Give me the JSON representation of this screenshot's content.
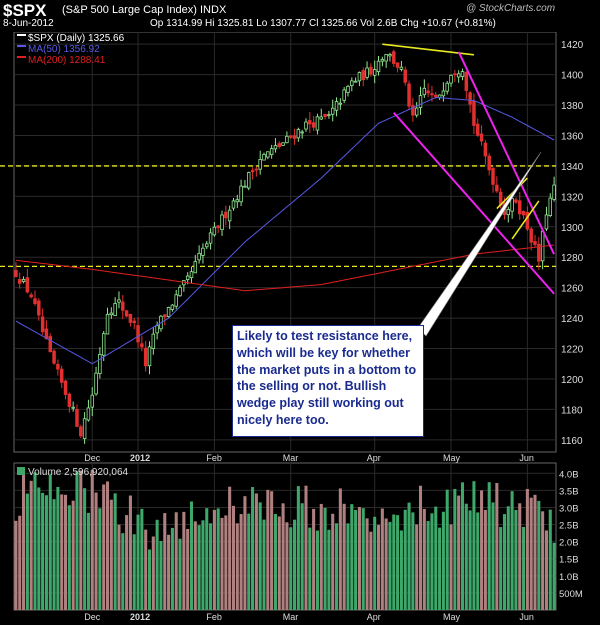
{
  "header": {
    "symbol": "$SPX",
    "description": "(S&P 500 Large Cap Index) INDX",
    "copyright": "@ StockCharts.com",
    "date": "8-Jun-2012",
    "ohlc_text": "Op 1314.99  Hi 1325.81  Lo 1307.77  Cl 1325.66  Vol 2.6B  Chg +10.67 (+0.81%)"
  },
  "note": {
    "text": "Likely to test resistance here, which will be key for whether the market puts in a bottom to the selling or not. Bullish wedge play still working out nicely here too."
  },
  "colors": {
    "background": "#000000",
    "grid": "#2a2a2a",
    "up": "#90e890",
    "down": "#e23030",
    "ma50": "#5858e8",
    "ma200": "#e02020",
    "trendline": "#ee22ee",
    "horizontal": "#e8e820",
    "volume_up": "#3ea86a",
    "volume_down": "#b08080"
  },
  "chart_data": [
    {
      "type": "candlestick",
      "title": "$SPX (Daily) 1325.66",
      "legend": [
        {
          "name": "$SPX (Daily)",
          "value": "1325.66",
          "color": "#ffffff"
        },
        {
          "name": "MA(50)",
          "value": "1356.92",
          "color": "#5858e8"
        },
        {
          "name": "MA(200)",
          "value": "1288.41",
          "color": "#e02020"
        }
      ],
      "legend_position": "top-left",
      "x_ticks": [
        "Dec",
        "2012",
        "Feb",
        "Mar",
        "Apr",
        "May",
        "Jun"
      ],
      "y_ticks": [
        1160,
        1180,
        1200,
        1220,
        1240,
        1260,
        1280,
        1300,
        1320,
        1340,
        1360,
        1380,
        1400,
        1420
      ],
      "ylim": [
        1152,
        1428
      ],
      "grid": true,
      "close_anchors": [
        {
          "index": 0,
          "close": 1270
        },
        {
          "index": 4,
          "close": 1255
        },
        {
          "index": 9,
          "close": 1215
        },
        {
          "index": 14,
          "close": 1185
        },
        {
          "index": 17,
          "close": 1165
        },
        {
          "index": 20,
          "close": 1190
        },
        {
          "index": 24,
          "close": 1245
        },
        {
          "index": 27,
          "close": 1250
        },
        {
          "index": 31,
          "close": 1235
        },
        {
          "index": 34,
          "close": 1210
        },
        {
          "index": 37,
          "close": 1235
        },
        {
          "index": 41,
          "close": 1250
        },
        {
          "index": 45,
          "close": 1265
        },
        {
          "index": 49,
          "close": 1285
        },
        {
          "index": 54,
          "close": 1305
        },
        {
          "index": 59,
          "close": 1325
        },
        {
          "index": 64,
          "close": 1345
        },
        {
          "index": 70,
          "close": 1355
        },
        {
          "index": 76,
          "close": 1367
        },
        {
          "index": 82,
          "close": 1372
        },
        {
          "index": 88,
          "close": 1395
        },
        {
          "index": 93,
          "close": 1403
        },
        {
          "index": 97,
          "close": 1415
        },
        {
          "index": 101,
          "close": 1403
        },
        {
          "index": 104,
          "close": 1370
        },
        {
          "index": 107,
          "close": 1390
        },
        {
          "index": 110,
          "close": 1383
        },
        {
          "index": 114,
          "close": 1402
        },
        {
          "index": 117,
          "close": 1405
        },
        {
          "index": 120,
          "close": 1368
        },
        {
          "index": 124,
          "close": 1338
        },
        {
          "index": 128,
          "close": 1310
        },
        {
          "index": 131,
          "close": 1318
        },
        {
          "index": 134,
          "close": 1300
        },
        {
          "index": 137,
          "close": 1278
        },
        {
          "index": 139,
          "close": 1310
        },
        {
          "index": 141,
          "close": 1325
        }
      ],
      "ma50": [
        {
          "index": 0,
          "value": 1238
        },
        {
          "index": 20,
          "value": 1210
        },
        {
          "index": 40,
          "value": 1240
        },
        {
          "index": 60,
          "value": 1290
        },
        {
          "index": 80,
          "value": 1332
        },
        {
          "index": 95,
          "value": 1368
        },
        {
          "index": 110,
          "value": 1385
        },
        {
          "index": 120,
          "value": 1383
        },
        {
          "index": 130,
          "value": 1372
        },
        {
          "index": 141,
          "value": 1357
        }
      ],
      "ma200": [
        {
          "index": 0,
          "value": 1278
        },
        {
          "index": 20,
          "value": 1272
        },
        {
          "index": 40,
          "value": 1265
        },
        {
          "index": 60,
          "value": 1258
        },
        {
          "index": 80,
          "value": 1262
        },
        {
          "index": 100,
          "value": 1272
        },
        {
          "index": 120,
          "value": 1282
        },
        {
          "index": 141,
          "value": 1288
        }
      ],
      "annotations": {
        "horizontal_lines": [
          1340,
          1274
        ],
        "top_line": [
          {
            "index": 96,
            "value": 1420
          },
          {
            "index": 120,
            "value": 1413
          }
        ],
        "channel_upper": [
          {
            "index": 116,
            "value": 1415
          },
          {
            "index": 141,
            "value": 1282
          }
        ],
        "channel_lower": [
          {
            "index": 99,
            "value": 1375
          },
          {
            "index": 141,
            "value": 1256
          }
        ],
        "wedge_upper": [
          {
            "index": 126,
            "value": 1312
          },
          {
            "index": 134,
            "value": 1332
          }
        ],
        "wedge_lower": [
          {
            "index": 130,
            "value": 1292
          },
          {
            "index": 137,
            "value": 1317
          }
        ]
      }
    },
    {
      "type": "bar",
      "title": "Volume",
      "legend": [
        {
          "name": "Volume",
          "value": "2,596,920,064"
        }
      ],
      "y_ticks": [
        "500M",
        "1.0B",
        "1.5B",
        "2.0B",
        "2.5B",
        "3.0B",
        "3.5B",
        "4.0B"
      ],
      "y_tick_values": [
        0.5,
        1.0,
        1.5,
        2.0,
        2.5,
        3.0,
        3.5,
        4.0
      ],
      "ylim": [
        0,
        4.3
      ],
      "unit": "billions",
      "x_ticks": [
        "Dec",
        "2012",
        "Feb",
        "Mar",
        "Apr",
        "May",
        "Jun"
      ],
      "volume_anchors": [
        {
          "index": 0,
          "value": 3.3
        },
        {
          "index": 20,
          "value": 3.5
        },
        {
          "index": 35,
          "value": 2.4
        },
        {
          "index": 50,
          "value": 3.0
        },
        {
          "index": 70,
          "value": 3.1
        },
        {
          "index": 90,
          "value": 2.9
        },
        {
          "index": 110,
          "value": 3.1
        },
        {
          "index": 125,
          "value": 3.2
        },
        {
          "index": 141,
          "value": 2.6
        }
      ]
    }
  ]
}
